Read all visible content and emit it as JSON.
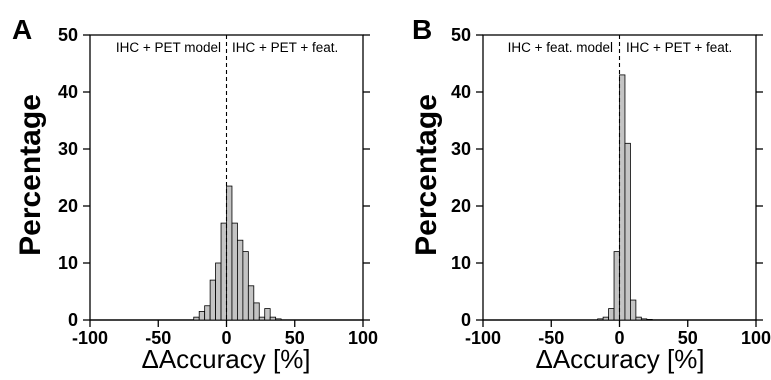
{
  "chart_data": [
    {
      "type": "bar",
      "panel_label": "A",
      "ylabel": "Percentage",
      "xlabel": "ΔAccuracy [%]",
      "xlim": [
        -100,
        100
      ],
      "ylim": [
        0,
        50
      ],
      "xticks": [
        -100,
        -50,
        0,
        50,
        100
      ],
      "yticks": [
        0,
        10,
        20,
        30,
        40,
        50
      ],
      "bin_width": 4,
      "grid": false,
      "annotations": {
        "left": "IHC + PET model",
        "right": "IHC + PET + feat."
      },
      "reference_line_x": 0,
      "bins_left_edge": [
        -24,
        -20,
        -16,
        -12,
        -8,
        -4,
        0,
        4,
        8,
        12,
        16,
        20,
        24,
        28,
        32,
        36
      ],
      "values": [
        0.5,
        1.5,
        2.5,
        7,
        10,
        17,
        23.5,
        17,
        14,
        12,
        6,
        3,
        0.5,
        2,
        0.5,
        0.2
      ]
    },
    {
      "type": "bar",
      "panel_label": "B",
      "ylabel": "Percentage",
      "xlabel": "ΔAccuracy [%]",
      "xlim": [
        -100,
        100
      ],
      "ylim": [
        0,
        50
      ],
      "xticks": [
        -100,
        -50,
        0,
        50,
        100
      ],
      "yticks": [
        0,
        10,
        20,
        30,
        40,
        50
      ],
      "bin_width": 4,
      "grid": false,
      "annotations": {
        "left": "IHC + feat. model",
        "right": "IHC + PET + feat."
      },
      "reference_line_x": 0,
      "bins_left_edge": [
        -16,
        -12,
        -8,
        -4,
        0,
        4,
        8,
        12,
        16,
        20
      ],
      "values": [
        0.2,
        0.5,
        2,
        12,
        43,
        31,
        3.5,
        0.5,
        0.2,
        0.1
      ]
    }
  ]
}
